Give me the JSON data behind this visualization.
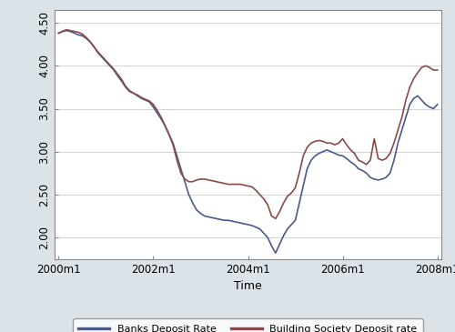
{
  "title": "",
  "xlabel": "Time",
  "ylabel": "",
  "ylim": [
    1.75,
    4.65
  ],
  "yticks": [
    2.0,
    2.5,
    3.0,
    3.5,
    4.0,
    4.5
  ],
  "ytick_labels": [
    "2.00",
    "2.50",
    "3.00",
    "3.50",
    "4.00",
    "4.50"
  ],
  "xtick_positions": [
    0,
    24,
    48,
    72,
    96
  ],
  "xtick_labels": [
    "2000m1",
    "2002m1",
    "2004m1",
    "2006m1",
    "2008m1"
  ],
  "outer_bg_color": "#dce3e8",
  "plot_bg_color": "#ffffff",
  "legend_bg": "#ffffff",
  "bank_color": "#4a5a8a",
  "bs_color": "#8a4a4a",
  "bank_label": "Banks Deposit Rate",
  "bs_label": "Building Society Deposit rate",
  "bank_data": [
    4.38,
    4.4,
    4.41,
    4.4,
    4.38,
    4.36,
    4.35,
    4.32,
    4.28,
    4.22,
    4.15,
    4.1,
    4.05,
    4.0,
    3.95,
    3.88,
    3.82,
    3.75,
    3.7,
    3.68,
    3.65,
    3.62,
    3.6,
    3.58,
    3.52,
    3.45,
    3.38,
    3.3,
    3.2,
    3.1,
    2.95,
    2.8,
    2.65,
    2.5,
    2.4,
    2.32,
    2.28,
    2.25,
    2.24,
    2.23,
    2.22,
    2.21,
    2.2,
    2.2,
    2.19,
    2.18,
    2.17,
    2.16,
    2.15,
    2.14,
    2.12,
    2.1,
    2.05,
    2.0,
    1.9,
    1.82,
    1.92,
    2.02,
    2.1,
    2.15,
    2.2,
    2.4,
    2.6,
    2.8,
    2.9,
    2.95,
    2.98,
    3.0,
    3.02,
    3.0,
    2.98,
    2.96,
    2.95,
    2.92,
    2.88,
    2.85,
    2.8,
    2.78,
    2.75,
    2.7,
    2.68,
    2.67,
    2.68,
    2.7,
    2.75,
    2.9,
    3.1,
    3.25,
    3.4,
    3.55,
    3.62,
    3.65,
    3.6,
    3.55,
    3.52,
    3.5,
    3.55
  ],
  "bs_data": [
    4.38,
    4.4,
    4.42,
    4.41,
    4.4,
    4.39,
    4.37,
    4.33,
    4.28,
    4.22,
    4.16,
    4.11,
    4.06,
    4.01,
    3.96,
    3.9,
    3.84,
    3.76,
    3.71,
    3.68,
    3.66,
    3.63,
    3.61,
    3.59,
    3.55,
    3.48,
    3.4,
    3.3,
    3.2,
    3.08,
    2.9,
    2.75,
    2.68,
    2.65,
    2.65,
    2.67,
    2.68,
    2.68,
    2.67,
    2.66,
    2.65,
    2.64,
    2.63,
    2.62,
    2.62,
    2.62,
    2.62,
    2.61,
    2.6,
    2.59,
    2.55,
    2.5,
    2.45,
    2.38,
    2.25,
    2.22,
    2.3,
    2.4,
    2.48,
    2.52,
    2.58,
    2.75,
    2.95,
    3.05,
    3.1,
    3.12,
    3.13,
    3.12,
    3.1,
    3.1,
    3.08,
    3.1,
    3.15,
    3.08,
    3.02,
    2.98,
    2.9,
    2.88,
    2.85,
    2.9,
    3.15,
    2.92,
    2.9,
    2.92,
    2.98,
    3.1,
    3.25,
    3.4,
    3.6,
    3.75,
    3.85,
    3.92,
    3.98,
    4.0,
    3.98,
    3.95,
    3.95
  ],
  "linewidth": 1.2,
  "grid_color": "#cccccc",
  "spine_color": "#888888",
  "tick_fontsize": 8.5,
  "xlabel_fontsize": 9
}
